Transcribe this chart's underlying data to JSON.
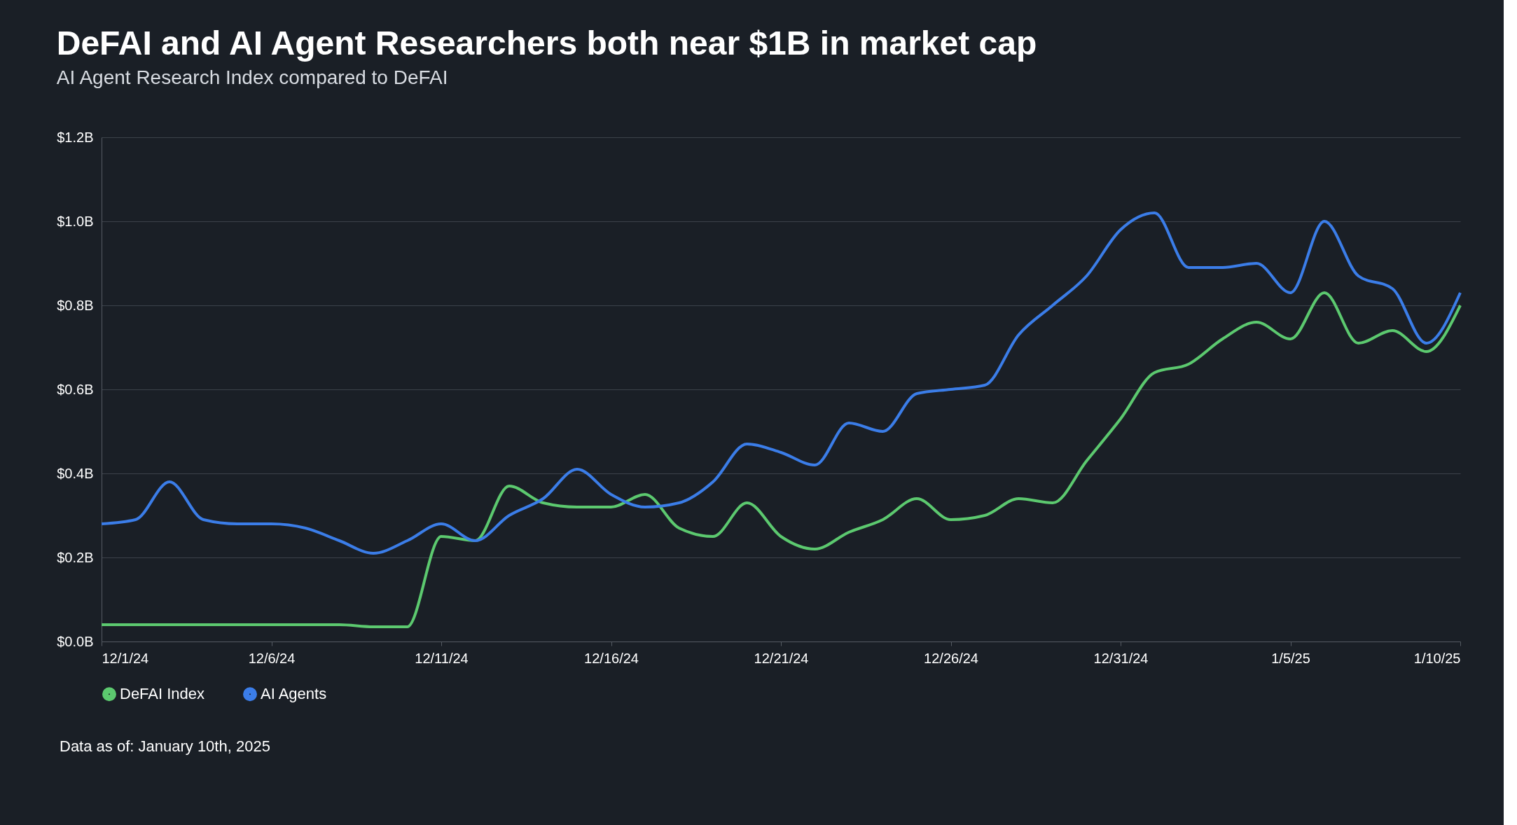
{
  "chart_data": {
    "type": "line",
    "title": "DeFAI and AI Agent Researchers both near $1B in market cap",
    "subtitle": "AI Agent Research Index compared to DeFAI",
    "x": [
      "2024-12-01",
      "2024-12-02",
      "2024-12-03",
      "2024-12-04",
      "2024-12-05",
      "2024-12-06",
      "2024-12-07",
      "2024-12-08",
      "2024-12-09",
      "2024-12-10",
      "2024-12-11",
      "2024-12-12",
      "2024-12-13",
      "2024-12-14",
      "2024-12-15",
      "2024-12-16",
      "2024-12-17",
      "2024-12-18",
      "2024-12-19",
      "2024-12-20",
      "2024-12-21",
      "2024-12-22",
      "2024-12-23",
      "2024-12-24",
      "2024-12-25",
      "2024-12-26",
      "2024-12-27",
      "2024-12-28",
      "2024-12-29",
      "2024-12-30",
      "2024-12-31",
      "2025-01-01",
      "2025-01-02",
      "2025-01-03",
      "2025-01-04",
      "2025-01-05",
      "2025-01-06",
      "2025-01-07",
      "2025-01-08",
      "2025-01-09",
      "2025-01-10"
    ],
    "series": [
      {
        "name": "DeFAI Index",
        "color": "#5cc96f",
        "values": [
          0.04,
          0.04,
          0.04,
          0.04,
          0.04,
          0.04,
          0.04,
          0.04,
          0.035,
          0.035,
          0.25,
          0.24,
          0.37,
          0.33,
          0.32,
          0.32,
          0.35,
          0.27,
          0.25,
          0.33,
          0.25,
          0.22,
          0.26,
          0.29,
          0.34,
          0.29,
          0.3,
          0.34,
          0.33,
          0.43,
          0.53,
          0.64,
          0.66,
          0.72,
          0.76,
          0.72,
          0.83,
          0.71,
          0.74,
          0.69,
          0.8
        ]
      },
      {
        "name": "AI Agents",
        "color": "#3b7de8",
        "values": [
          0.28,
          0.29,
          0.38,
          0.29,
          0.28,
          0.28,
          0.27,
          0.24,
          0.21,
          0.24,
          0.28,
          0.24,
          0.3,
          0.34,
          0.41,
          0.35,
          0.32,
          0.33,
          0.38,
          0.47,
          0.45,
          0.42,
          0.52,
          0.5,
          0.59,
          0.6,
          0.61,
          0.73,
          0.8,
          0.87,
          0.98,
          1.02,
          0.89,
          0.89,
          0.9,
          0.83,
          1.0,
          0.87,
          0.84,
          0.71,
          0.83
        ]
      }
    ],
    "xlim": [
      "2024-12-01",
      "2025-01-10"
    ],
    "xticks": [
      {
        "value": "2024-12-01",
        "label": "12/1/24"
      },
      {
        "value": "2024-12-06",
        "label": "12/6/24"
      },
      {
        "value": "2024-12-11",
        "label": "12/11/24"
      },
      {
        "value": "2024-12-16",
        "label": "12/16/24"
      },
      {
        "value": "2024-12-21",
        "label": "12/21/24"
      },
      {
        "value": "2024-12-26",
        "label": "12/26/24"
      },
      {
        "value": "2024-12-31",
        "label": "12/31/24"
      },
      {
        "value": "2025-01-05",
        "label": "1/5/25"
      },
      {
        "value": "2025-01-10",
        "label": "1/10/25"
      }
    ],
    "ylim": [
      0,
      1.2
    ],
    "yticks": [
      {
        "value": 0,
        "label": "$0.0B"
      },
      {
        "value": 0.2,
        "label": "$0.2B"
      },
      {
        "value": 0.4,
        "label": "$0.4B"
      },
      {
        "value": 0.6,
        "label": "$0.6B"
      },
      {
        "value": 0.8,
        "label": "$0.8B"
      },
      {
        "value": 1.0,
        "label": "$1.0B"
      },
      {
        "value": 1.2,
        "label": "$1.2B"
      }
    ],
    "grid": "y",
    "legend": "bottom",
    "marker": "none",
    "line_style": "solid",
    "annotations": [
      "Data as of: January 10th, 2025"
    ]
  }
}
